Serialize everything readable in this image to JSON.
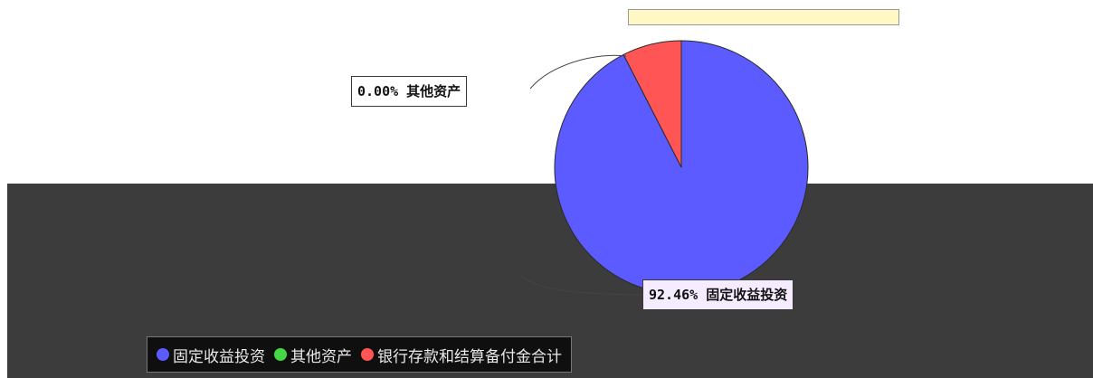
{
  "header": {
    "title": "",
    "subtitle": "",
    "top_label": ""
  },
  "slice_tag": "",
  "chart_data": {
    "type": "pie",
    "title": "",
    "slices": [
      {
        "name": "固定收益投资",
        "value": 92.46,
        "label": "92.46% 固定收益投资",
        "color": "#5b5bff"
      },
      {
        "name": "其他资产",
        "value": 0,
        "label": "",
        "color": "#44d844"
      },
      {
        "name": "银行存款和结算备付金合计",
        "value": 7.54,
        "label": "",
        "color": "#ff5555"
      }
    ],
    "other_label": "0.00% 其他资产",
    "legend": {
      "placement": "bottom",
      "entries": [
        "固定收益投资",
        "其他资产",
        "银行存款和结算备付金合计"
      ]
    }
  },
  "colors": {
    "fixed_income": "#5b5bff",
    "other_assets": "#44d844",
    "bank_deposits": "#ff5555",
    "dark_band": "#3c3c3c",
    "legend_bg": "#0f0f0f"
  }
}
